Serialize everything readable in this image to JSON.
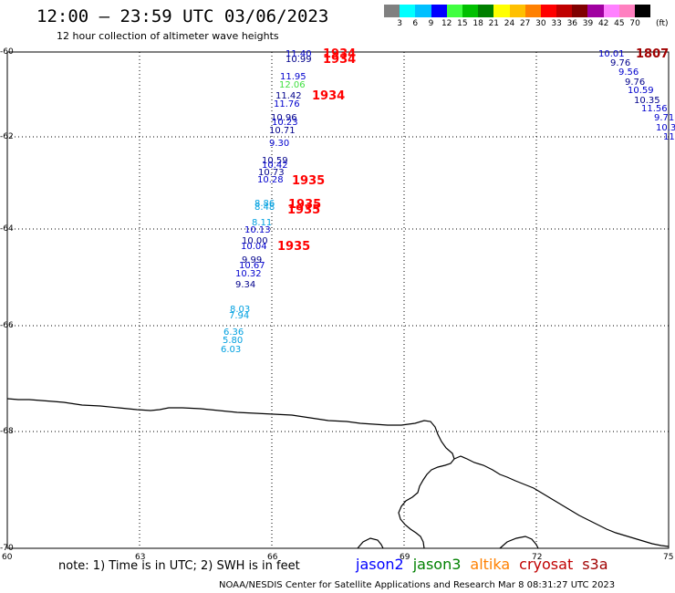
{
  "header": {
    "title": "12:00 – 23:59 UTC 03/06/2023",
    "subtitle": "12 hour collection of altimeter wave heights"
  },
  "legend": {
    "colors": [
      "#808080",
      "#00ffff",
      "#00c0ff",
      "#0000ff",
      "#40ff40",
      "#00c000",
      "#008000",
      "#ffff00",
      "#ffc000",
      "#ff8000",
      "#ff0000",
      "#c00000",
      "#800000",
      "#a000a0",
      "#ff80ff",
      "#ff80c0",
      "#000000"
    ],
    "labels": [
      "3",
      "6",
      "9",
      "12",
      "15",
      "18",
      "21",
      "24",
      "27",
      "30",
      "33",
      "36",
      "39",
      "42",
      "45",
      "70"
    ],
    "unit": "(ft)"
  },
  "map": {
    "colors": {
      "jason2": "#0000ff",
      "jason3": "#008000",
      "altika": "#ff8000",
      "cryosat": "#c00000",
      "s3a": "#a00000",
      "swh_navy": "#00008b",
      "swh_blue": "#0000cd",
      "swh_sky": "#00a0e0",
      "swh_green": "#40e040",
      "time_red": "#ff0000",
      "time_darkred": "#a00000",
      "coast": "#000000",
      "grid": "#000000"
    },
    "x_axis": {
      "ticks": [
        60,
        63,
        66,
        69,
        72,
        75
      ],
      "labels": [
        "60",
        "63",
        "66",
        "69",
        "72",
        "75"
      ]
    },
    "y_axis": {
      "ticks": [
        -60,
        -62,
        -64,
        -66,
        -68,
        -70
      ],
      "labels": [
        "-60",
        "-62",
        "-64",
        "-66",
        "-68",
        "-70"
      ]
    },
    "track1_swh": [
      {
        "text": "11.40",
        "color": "swh_blue"
      },
      {
        "text": "10.99",
        "color": "swh_navy"
      },
      {
        "text": "11.95",
        "color": "swh_blue"
      },
      {
        "text": "12.06",
        "color": "swh_green"
      },
      {
        "text": "11.42",
        "color": "swh_navy"
      },
      {
        "text": "11.76",
        "color": "swh_blue"
      },
      {
        "text": "10.96",
        "color": "swh_navy"
      },
      {
        "text": "10.23",
        "color": "swh_blue"
      },
      {
        "text": "10.71",
        "color": "swh_navy"
      },
      {
        "text": "9.30",
        "color": "swh_blue"
      },
      {
        "text": "10.59",
        "color": "swh_navy"
      },
      {
        "text": "10.42",
        "color": "swh_blue"
      },
      {
        "text": "10.73",
        "color": "swh_navy"
      },
      {
        "text": "10.28",
        "color": "swh_blue"
      },
      {
        "text": "8.86",
        "color": "swh_sky"
      },
      {
        "text": "8.48",
        "color": "swh_sky"
      },
      {
        "text": "8.11",
        "color": "swh_sky"
      },
      {
        "text": "10.13",
        "color": "swh_blue"
      },
      {
        "text": "10.00",
        "color": "swh_navy"
      },
      {
        "text": "10.04",
        "color": "swh_blue"
      },
      {
        "text": "9.99",
        "color": "swh_navy"
      },
      {
        "text": "10.67",
        "color": "swh_blue"
      },
      {
        "text": "10.32",
        "color": "swh_blue"
      },
      {
        "text": "9.34",
        "color": "swh_navy"
      },
      {
        "text": "8.03",
        "color": "swh_sky"
      },
      {
        "text": "7.94",
        "color": "swh_sky"
      },
      {
        "text": "6.36",
        "color": "swh_sky"
      },
      {
        "text": "5.80",
        "color": "swh_sky"
      },
      {
        "text": "6.03",
        "color": "swh_sky"
      }
    ],
    "track1_times": [
      {
        "text": "1934",
        "color": "time_red"
      },
      {
        "text": "1934",
        "color": "time_red"
      },
      {
        "text": "1934",
        "color": "time_red"
      },
      {
        "text": "1935",
        "color": "time_red"
      },
      {
        "text": "1935",
        "color": "time_red"
      },
      {
        "text": "1935",
        "color": "time_red"
      },
      {
        "text": "1935",
        "color": "time_red"
      }
    ],
    "track2_swh": [
      {
        "text": "10.01",
        "color": "swh_blue"
      },
      {
        "text": "9.76",
        "color": "swh_navy"
      },
      {
        "text": "9.56",
        "color": "swh_blue"
      },
      {
        "text": "9.76",
        "color": "swh_navy"
      },
      {
        "text": "10.59",
        "color": "swh_blue"
      },
      {
        "text": "10.35",
        "color": "swh_navy"
      },
      {
        "text": "11.56",
        "color": "swh_blue"
      },
      {
        "text": "9.71",
        "color": "swh_blue"
      },
      {
        "text": "10.3",
        "color": "swh_blue"
      },
      {
        "text": "11",
        "color": "swh_blue"
      }
    ],
    "track2_times": [
      {
        "text": "1807",
        "color": "time_darkred"
      }
    ]
  },
  "footer": {
    "note": "note: 1) Time is in UTC; 2) SWH is in feet",
    "satellites": [
      {
        "name": "jason2",
        "color": "jason2"
      },
      {
        "name": "jason3",
        "color": "jason3"
      },
      {
        "name": "altika",
        "color": "altika"
      },
      {
        "name": "cryosat",
        "color": "cryosat"
      },
      {
        "name": "s3a",
        "color": "s3a"
      }
    ],
    "credit": "NOAA/NESDIS Center for Satellite Applications and Research   Mar  8 08:31:27 UTC 2023"
  }
}
